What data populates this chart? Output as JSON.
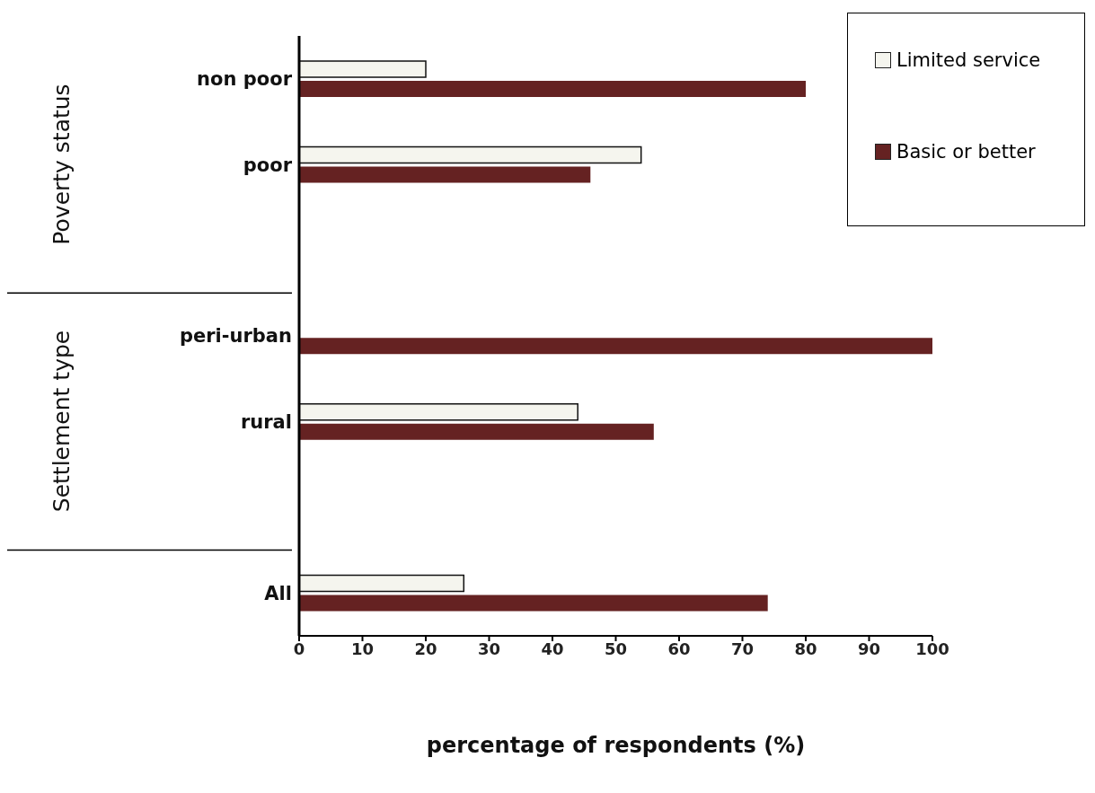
{
  "chart_data": {
    "type": "bar",
    "orientation": "horizontal",
    "xlabel": "percentage of respondents (%)",
    "categories": [
      "non poor",
      "poor",
      null,
      "peri-urban",
      "rural",
      null,
      "All"
    ],
    "series": [
      {
        "name": "Limited service",
        "color": "#f5f5ee",
        "values": [
          20,
          54,
          null,
          0,
          44,
          null,
          26
        ]
      },
      {
        "name": "Basic or better",
        "color": "#652222",
        "values": [
          80,
          46,
          null,
          100,
          56,
          null,
          74
        ]
      }
    ],
    "xlim": [
      0,
      100
    ],
    "xticks": [
      0,
      10,
      20,
      30,
      40,
      50,
      60,
      70,
      80,
      90,
      100
    ],
    "annotations": [
      "Poverty status",
      "Settlement type"
    ],
    "grid": false,
    "legend": "top right"
  }
}
